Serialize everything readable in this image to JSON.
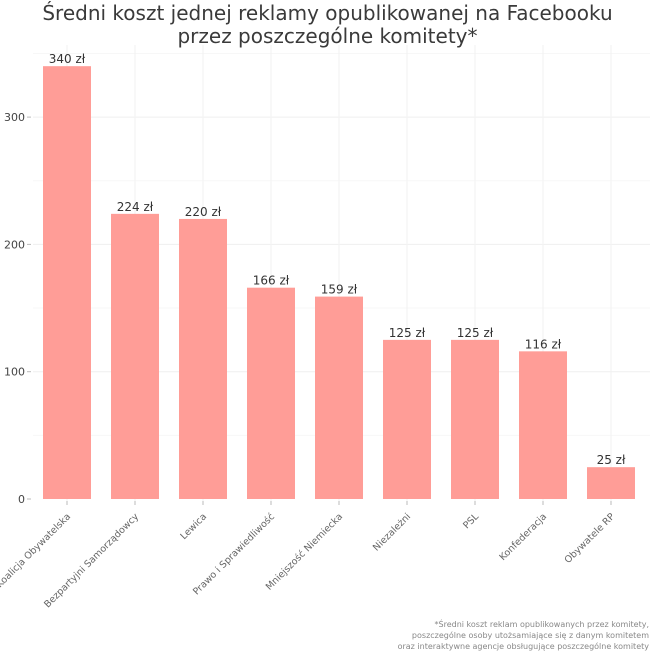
{
  "chart_data": {
    "type": "bar",
    "title": [
      "Średni koszt jednej reklamy opublikowanej na Facebooku",
      "przez poszczególne komitety*"
    ],
    "categories": [
      "Koalicja Obywatelska",
      "Bezpartyjni Samorządowcy",
      "Lewica",
      "Prawo i Sprawiedliwość",
      "Mniejszość Niemiecka",
      "Niezależni",
      "PSL",
      "Konfederacja",
      "Obywatele RP"
    ],
    "values": [
      340,
      224,
      220,
      166,
      159,
      125,
      125,
      116,
      25
    ],
    "data_labels": [
      "340 zł",
      "224 zł",
      "220 zł",
      "166 zł",
      "159 zł",
      "125 zł",
      "125 zł",
      "116 zł",
      "25 zł"
    ],
    "ylim": [
      0,
      355
    ],
    "yticks": [
      0,
      100,
      200,
      300
    ],
    "grid": true,
    "bar_color": "#ff9d97",
    "xlabel": "",
    "ylabel": ""
  },
  "footnote": [
    "*Średni koszt reklam opublikowanych przez komitety,",
    "poszczególne osoby utożsamiające się z danym komitetem",
    "oraz interaktywne agencje obsługujące poszczególne komitety"
  ]
}
